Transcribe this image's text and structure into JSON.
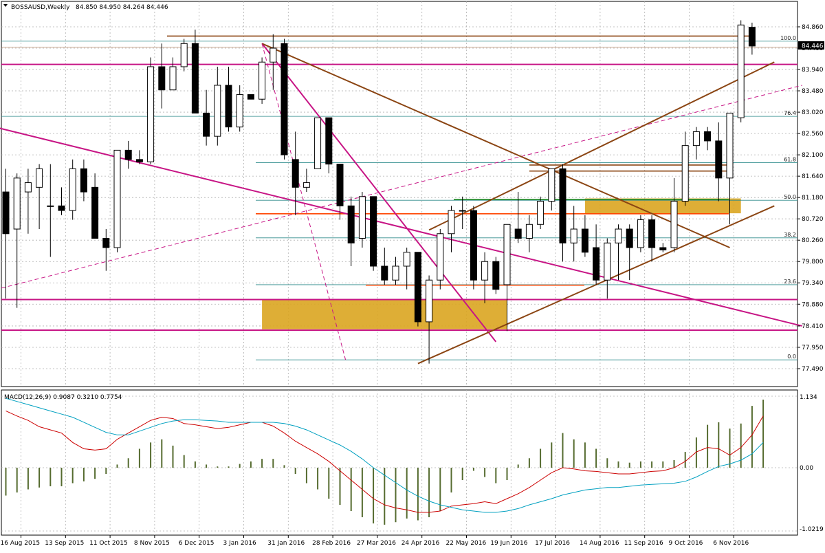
{
  "chart_data": [
    {
      "type": "candlestick",
      "title": "BOSSAUSD,Weekly",
      "ohlc_text": "84.850 84.950 84.264 84.446",
      "last_price": "84.446",
      "ylim": [
        77.49,
        85.1
      ],
      "y_ticks": [
        "84.860",
        "84.400",
        "83.940",
        "83.480",
        "83.020",
        "82.560",
        "82.100",
        "81.640",
        "81.180",
        "80.720",
        "80.260",
        "79.800",
        "79.340",
        "78.880",
        "78.410",
        "77.950",
        "77.490"
      ],
      "x_ticks": [
        {
          "label": "16 Aug 2015",
          "index": 0
        },
        {
          "label": "13 Sep 2015",
          "index": 4
        },
        {
          "label": "11 Oct 2015",
          "index": 8
        },
        {
          "label": "8 Nov 2015",
          "index": 12
        },
        {
          "label": "6 Dec 2015",
          "index": 16
        },
        {
          "label": "3 Jan 2016",
          "index": 20
        },
        {
          "label": "31 Jan 2016",
          "index": 24
        },
        {
          "label": "28 Feb 2016",
          "index": 28
        },
        {
          "label": "27 Mar 2016",
          "index": 32
        },
        {
          "label": "24 Apr 2016",
          "index": 36
        },
        {
          "label": "22 May 2016",
          "index": 40
        },
        {
          "label": "19 Jun 2016",
          "index": 44
        },
        {
          "label": "17 Jul 2016",
          "index": 48
        },
        {
          "label": "14 Aug 2016",
          "index": 52
        },
        {
          "label": "11 Sep 2016",
          "index": 56
        },
        {
          "label": "9 Oct 2016",
          "index": 60
        },
        {
          "label": "6 Nov 2016",
          "index": 64
        }
      ],
      "candles": [
        {
          "o": 81.3,
          "h": 81.8,
          "l": 79.0,
          "c": 80.4
        },
        {
          "o": 80.5,
          "h": 81.7,
          "l": 78.8,
          "c": 81.6
        },
        {
          "o": 81.3,
          "h": 81.8,
          "l": 80.4,
          "c": 81.5
        },
        {
          "o": 81.4,
          "h": 81.9,
          "l": 80.5,
          "c": 81.8
        },
        {
          "o": 81.0,
          "h": 81.9,
          "l": 79.9,
          "c": 81.0
        },
        {
          "o": 81.0,
          "h": 81.4,
          "l": 80.8,
          "c": 80.9
        },
        {
          "o": 80.9,
          "h": 82.0,
          "l": 80.7,
          "c": 81.8
        },
        {
          "o": 81.8,
          "h": 82.0,
          "l": 81.1,
          "c": 81.3
        },
        {
          "o": 81.4,
          "h": 81.7,
          "l": 80.3,
          "c": 80.3
        },
        {
          "o": 80.3,
          "h": 80.5,
          "l": 79.6,
          "c": 80.1
        },
        {
          "o": 80.1,
          "h": 82.2,
          "l": 80.0,
          "c": 82.2
        },
        {
          "o": 82.2,
          "h": 82.4,
          "l": 81.8,
          "c": 82.0
        },
        {
          "o": 82.0,
          "h": 82.2,
          "l": 81.9,
          "c": 81.95
        },
        {
          "o": 81.95,
          "h": 84.2,
          "l": 81.9,
          "c": 84.0
        },
        {
          "o": 84.0,
          "h": 84.5,
          "l": 83.1,
          "c": 83.5
        },
        {
          "o": 83.5,
          "h": 84.2,
          "l": 83.5,
          "c": 84.0
        },
        {
          "o": 84.0,
          "h": 84.6,
          "l": 83.9,
          "c": 84.5
        },
        {
          "o": 84.5,
          "h": 84.8,
          "l": 83.0,
          "c": 83.0
        },
        {
          "o": 83.0,
          "h": 83.5,
          "l": 82.3,
          "c": 82.5
        },
        {
          "o": 82.5,
          "h": 84.0,
          "l": 82.3,
          "c": 83.6
        },
        {
          "o": 83.6,
          "h": 84.0,
          "l": 82.6,
          "c": 82.7
        },
        {
          "o": 82.7,
          "h": 83.6,
          "l": 82.6,
          "c": 83.4
        },
        {
          "o": 83.4,
          "h": 83.4,
          "l": 83.3,
          "c": 83.3
        },
        {
          "o": 83.3,
          "h": 84.2,
          "l": 83.2,
          "c": 84.1
        },
        {
          "o": 84.1,
          "h": 84.7,
          "l": 83.5,
          "c": 84.4
        },
        {
          "o": 84.5,
          "h": 84.6,
          "l": 82.0,
          "c": 82.1
        },
        {
          "o": 82.0,
          "h": 82.6,
          "l": 80.8,
          "c": 81.4
        },
        {
          "o": 81.4,
          "h": 81.8,
          "l": 81.3,
          "c": 81.5
        },
        {
          "o": 81.8,
          "h": 82.9,
          "l": 81.8,
          "c": 82.9
        },
        {
          "o": 82.9,
          "h": 82.9,
          "l": 81.7,
          "c": 81.9
        },
        {
          "o": 81.9,
          "h": 81.9,
          "l": 80.7,
          "c": 81.0
        },
        {
          "o": 81.0,
          "h": 81.2,
          "l": 79.7,
          "c": 80.2
        },
        {
          "o": 80.3,
          "h": 81.3,
          "l": 80.1,
          "c": 81.2
        },
        {
          "o": 81.2,
          "h": 81.2,
          "l": 79.6,
          "c": 79.7
        },
        {
          "o": 79.7,
          "h": 80.1,
          "l": 79.3,
          "c": 79.4
        },
        {
          "o": 79.4,
          "h": 79.9,
          "l": 79.3,
          "c": 79.7
        },
        {
          "o": 79.7,
          "h": 80.1,
          "l": 79.2,
          "c": 80.0
        },
        {
          "o": 80.0,
          "h": 80.0,
          "l": 78.4,
          "c": 78.5
        },
        {
          "o": 78.5,
          "h": 79.5,
          "l": 77.6,
          "c": 79.4
        },
        {
          "o": 79.4,
          "h": 80.5,
          "l": 79.2,
          "c": 80.4
        },
        {
          "o": 80.4,
          "h": 81.0,
          "l": 80.0,
          "c": 80.9
        },
        {
          "o": 80.9,
          "h": 81.2,
          "l": 80.5,
          "c": 80.9
        },
        {
          "o": 80.9,
          "h": 81.0,
          "l": 79.2,
          "c": 79.4
        },
        {
          "o": 79.4,
          "h": 80.0,
          "l": 78.9,
          "c": 79.8
        },
        {
          "o": 79.8,
          "h": 79.9,
          "l": 79.1,
          "c": 79.2
        },
        {
          "o": 79.3,
          "h": 80.6,
          "l": 78.3,
          "c": 80.6
        },
        {
          "o": 80.5,
          "h": 81.3,
          "l": 80.2,
          "c": 80.3
        },
        {
          "o": 80.3,
          "h": 80.8,
          "l": 80.0,
          "c": 80.6
        },
        {
          "o": 80.6,
          "h": 81.2,
          "l": 80.5,
          "c": 81.1
        },
        {
          "o": 81.1,
          "h": 81.8,
          "l": 80.9,
          "c": 81.8
        },
        {
          "o": 81.8,
          "h": 81.9,
          "l": 79.8,
          "c": 80.2
        },
        {
          "o": 80.2,
          "h": 81.0,
          "l": 79.8,
          "c": 80.5
        },
        {
          "o": 80.5,
          "h": 80.8,
          "l": 79.9,
          "c": 80.0
        },
        {
          "o": 80.1,
          "h": 80.6,
          "l": 79.3,
          "c": 79.4
        },
        {
          "o": 79.4,
          "h": 80.3,
          "l": 79.0,
          "c": 80.2
        },
        {
          "o": 80.2,
          "h": 80.6,
          "l": 79.4,
          "c": 80.5
        },
        {
          "o": 80.5,
          "h": 80.6,
          "l": 79.4,
          "c": 80.1
        },
        {
          "o": 80.1,
          "h": 80.8,
          "l": 80.0,
          "c": 80.7
        },
        {
          "o": 80.7,
          "h": 80.8,
          "l": 79.8,
          "c": 80.1
        },
        {
          "o": 80.1,
          "h": 80.2,
          "l": 80.0,
          "c": 80.05
        },
        {
          "o": 80.1,
          "h": 81.6,
          "l": 80.0,
          "c": 81.1
        },
        {
          "o": 81.1,
          "h": 82.6,
          "l": 81.0,
          "c": 82.3
        },
        {
          "o": 82.3,
          "h": 82.7,
          "l": 82.0,
          "c": 82.6
        },
        {
          "o": 82.6,
          "h": 82.7,
          "l": 82.2,
          "c": 82.4
        },
        {
          "o": 82.4,
          "h": 82.8,
          "l": 81.1,
          "c": 81.6
        },
        {
          "o": 81.6,
          "h": 83.0,
          "l": 80.6,
          "c": 83.0
        },
        {
          "o": 82.9,
          "h": 85.0,
          "l": 82.8,
          "c": 84.9
        },
        {
          "o": 84.85,
          "h": 84.95,
          "l": 84.26,
          "c": 84.446
        }
      ],
      "fibonacci": {
        "levels": [
          {
            "label": "100.0",
            "value": 84.55
          },
          {
            "label": "76.4",
            "value": 82.93
          },
          {
            "label": "61.8",
            "value": 81.93
          },
          {
            "label": "50.0",
            "value": 81.12
          },
          {
            "label": "38.2",
            "value": 80.31
          },
          {
            "label": "23.6",
            "value": 79.3
          },
          {
            "label": "0.0",
            "value": 77.68
          }
        ]
      },
      "horizontal_lines": [
        {
          "value": 84.05,
          "color": "#c71585"
        },
        {
          "value": 78.98,
          "color": "#c71585"
        },
        {
          "value": 78.32,
          "color": "#c71585"
        },
        {
          "value": 84.66,
          "color": "#8b4513"
        },
        {
          "value": 84.42,
          "color": "#8b4513"
        },
        {
          "value": 81.88,
          "color": "#8b4513"
        },
        {
          "value": 81.75,
          "color": "#8b4513"
        },
        {
          "value": 80.83,
          "color": "#ff4500"
        },
        {
          "value": 79.29,
          "color": "#ff4500"
        },
        {
          "value": 81.14,
          "color": "#228b22"
        }
      ],
      "zones": [
        {
          "x_from": 23,
          "x_to": 45,
          "y_from": 78.34,
          "y_to": 78.98,
          "color": "#daa520"
        },
        {
          "x_from": 52,
          "x_to": 66,
          "y_from": 80.84,
          "y_to": 81.16,
          "color": "#daa520"
        }
      ],
      "trendlines": [
        {
          "from": [
            -1,
            82.7
          ],
          "to": [
            71.5,
            78.41
          ],
          "color": "#c71585",
          "dash": false
        },
        {
          "from": [
            23,
            84.5
          ],
          "to": [
            44,
            78.07
          ],
          "color": "#c71585",
          "dash": false
        },
        {
          "from": [
            -1,
            79.19
          ],
          "to": [
            71.5,
            83.6
          ],
          "color": "#c71585",
          "dash": true
        },
        {
          "from": [
            23,
            84.5
          ],
          "to": [
            65,
            80.1
          ],
          "color": "#8b4513",
          "dash": false
        },
        {
          "from": [
            38,
            80.48
          ],
          "to": [
            69,
            84.1
          ],
          "color": "#8b4513",
          "dash": false
        },
        {
          "from": [
            37,
            77.6
          ],
          "to": [
            69,
            81.0
          ],
          "color": "#8b4513",
          "dash": false
        },
        {
          "from": [
            23,
            84.5
          ],
          "to": [
            30.5,
            77.68
          ],
          "color": "#c71585",
          "dash": true
        }
      ],
      "colors": {
        "fib": "#2e8b8b",
        "grid": "#b0b0b0",
        "bull": "#ffffff",
        "bear": "#000000"
      }
    },
    {
      "type": "bar+line",
      "title": "MACD(12,26,9) 0.9087 0.3210 0.7754",
      "ylim": [
        -1.0219,
        1.134
      ],
      "y_ticks": [
        "1.134",
        "0.00",
        "-1.0219"
      ],
      "histogram": [
        -0.45,
        -0.4,
        -0.35,
        -0.32,
        -0.3,
        -0.3,
        -0.25,
        -0.22,
        -0.18,
        -0.1,
        0.05,
        0.15,
        0.3,
        0.4,
        0.45,
        0.35,
        0.2,
        0.1,
        0.05,
        0.02,
        0.02,
        0.06,
        0.1,
        0.14,
        0.14,
        0.04,
        -0.1,
        -0.25,
        -0.35,
        -0.5,
        -0.6,
        -0.7,
        -0.8,
        -0.9,
        -0.92,
        -0.88,
        -0.82,
        -0.85,
        -0.8,
        -0.7,
        -0.4,
        -0.2,
        -0.05,
        -0.15,
        -0.25,
        -0.2,
        0.05,
        0.15,
        0.3,
        0.4,
        0.55,
        0.45,
        0.4,
        0.3,
        0.15,
        0.1,
        0.08,
        0.1,
        0.1,
        0.1,
        0.12,
        0.25,
        0.48,
        0.68,
        0.72,
        0.62,
        0.7,
        0.98,
        1.08
      ],
      "series": [
        {
          "values": [
            0.9,
            0.82,
            0.75,
            0.65,
            0.6,
            0.55,
            0.4,
            0.3,
            0.28,
            0.3,
            0.45,
            0.55,
            0.65,
            0.75,
            0.8,
            0.78,
            0.7,
            0.68,
            0.65,
            0.62,
            0.64,
            0.68,
            0.72,
            0.72,
            0.66,
            0.55,
            0.42,
            0.32,
            0.22,
            0.1,
            -0.05,
            -0.2,
            -0.35,
            -0.5,
            -0.6,
            -0.65,
            -0.68,
            -0.72,
            -0.72,
            -0.7,
            -0.62,
            -0.6,
            -0.58,
            -0.55,
            -0.58,
            -0.5,
            -0.42,
            -0.32,
            -0.2,
            -0.08,
            0.0,
            -0.02,
            -0.05,
            -0.06,
            -0.08,
            -0.1,
            -0.1,
            -0.08,
            -0.06,
            -0.05,
            0.0,
            0.1,
            0.25,
            0.32,
            0.3,
            0.2,
            0.32,
            0.52,
            0.82
          ],
          "color": "#cc0000"
        },
        {
          "values": [
            1.1,
            1.05,
            1.0,
            0.95,
            0.9,
            0.85,
            0.8,
            0.72,
            0.64,
            0.56,
            0.52,
            0.52,
            0.58,
            0.64,
            0.7,
            0.74,
            0.76,
            0.76,
            0.75,
            0.74,
            0.72,
            0.72,
            0.72,
            0.72,
            0.72,
            0.7,
            0.66,
            0.6,
            0.52,
            0.44,
            0.36,
            0.26,
            0.14,
            0.0,
            -0.12,
            -0.24,
            -0.36,
            -0.46,
            -0.54,
            -0.6,
            -0.64,
            -0.68,
            -0.7,
            -0.72,
            -0.72,
            -0.7,
            -0.66,
            -0.6,
            -0.55,
            -0.5,
            -0.44,
            -0.4,
            -0.36,
            -0.34,
            -0.32,
            -0.32,
            -0.3,
            -0.28,
            -0.27,
            -0.26,
            -0.25,
            -0.22,
            -0.15,
            -0.06,
            0.02,
            0.06,
            0.12,
            0.22,
            0.4
          ],
          "color": "#00a0c0"
        }
      ]
    }
  ]
}
